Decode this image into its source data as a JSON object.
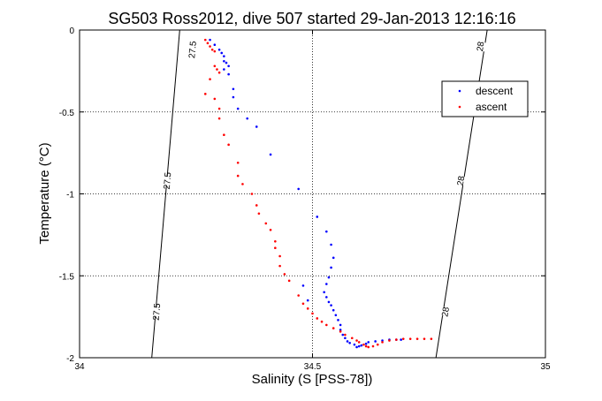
{
  "chart_data": {
    "type": "scatter",
    "title": "SG503 Ross2012, dive 507 started 29-Jan-2013 12:16:16",
    "xlabel": "Salinity (S [PSS-78])",
    "ylabel": "Temperature (°C)",
    "xlim": [
      34,
      35
    ],
    "ylim": [
      -2,
      0
    ],
    "x_ticks": [
      "34",
      "34.5",
      "35"
    ],
    "y_ticks": [
      "0",
      "-0.5",
      "-1",
      "-1.5",
      "-2"
    ],
    "grid": true,
    "legend_position": "top-right",
    "series": [
      {
        "name": "descent",
        "color": "#0000ff",
        "marker": "dot",
        "points": [
          [
            34.28,
            -0.06
          ],
          [
            34.29,
            -0.09
          ],
          [
            34.3,
            -0.12
          ],
          [
            34.305,
            -0.14
          ],
          [
            34.31,
            -0.16
          ],
          [
            34.31,
            -0.19
          ],
          [
            34.315,
            -0.2
          ],
          [
            34.32,
            -0.22
          ],
          [
            34.31,
            -0.24
          ],
          [
            34.32,
            -0.27
          ],
          [
            34.33,
            -0.36
          ],
          [
            34.33,
            -0.41
          ],
          [
            34.34,
            -0.48
          ],
          [
            34.36,
            -0.54
          ],
          [
            34.38,
            -0.59
          ],
          [
            34.41,
            -0.76
          ],
          [
            34.47,
            -0.97
          ],
          [
            34.51,
            -1.14
          ],
          [
            34.53,
            -1.23
          ],
          [
            34.54,
            -1.31
          ],
          [
            34.545,
            -1.39
          ],
          [
            34.54,
            -1.45
          ],
          [
            34.535,
            -1.51
          ],
          [
            34.53,
            -1.55
          ],
          [
            34.525,
            -1.6
          ],
          [
            34.53,
            -1.63
          ],
          [
            34.535,
            -1.66
          ],
          [
            34.54,
            -1.68
          ],
          [
            34.545,
            -1.71
          ],
          [
            34.55,
            -1.74
          ],
          [
            34.555,
            -1.77
          ],
          [
            34.56,
            -1.8
          ],
          [
            34.56,
            -1.83
          ],
          [
            34.565,
            -1.86
          ],
          [
            34.57,
            -1.88
          ],
          [
            34.575,
            -1.9
          ],
          [
            34.58,
            -1.91
          ],
          [
            34.59,
            -1.92
          ],
          [
            34.595,
            -1.935
          ],
          [
            34.6,
            -1.93
          ],
          [
            34.605,
            -1.925
          ],
          [
            34.615,
            -1.915
          ],
          [
            34.62,
            -1.905
          ],
          [
            34.635,
            -1.9
          ],
          [
            34.65,
            -1.895
          ],
          [
            34.665,
            -1.89
          ],
          [
            34.68,
            -1.89
          ],
          [
            34.69,
            -1.89
          ],
          [
            34.48,
            -1.56
          ],
          [
            34.49,
            -1.65
          ]
        ]
      },
      {
        "name": "ascent",
        "color": "#ff0000",
        "marker": "dot",
        "points": [
          [
            34.27,
            -0.06
          ],
          [
            34.275,
            -0.08
          ],
          [
            34.28,
            -0.1
          ],
          [
            34.285,
            -0.12
          ],
          [
            34.29,
            -0.13
          ],
          [
            34.29,
            -0.22
          ],
          [
            34.295,
            -0.24
          ],
          [
            34.3,
            -0.26
          ],
          [
            34.28,
            -0.3
          ],
          [
            34.27,
            -0.39
          ],
          [
            34.29,
            -0.42
          ],
          [
            34.3,
            -0.48
          ],
          [
            34.3,
            -0.54
          ],
          [
            34.31,
            -0.64
          ],
          [
            34.32,
            -0.7
          ],
          [
            34.34,
            -0.81
          ],
          [
            34.34,
            -0.89
          ],
          [
            34.35,
            -0.94
          ],
          [
            34.37,
            -1.0
          ],
          [
            34.38,
            -1.07
          ],
          [
            34.385,
            -1.12
          ],
          [
            34.4,
            -1.18
          ],
          [
            34.41,
            -1.22
          ],
          [
            34.42,
            -1.29
          ],
          [
            34.42,
            -1.33
          ],
          [
            34.43,
            -1.38
          ],
          [
            34.43,
            -1.44
          ],
          [
            34.44,
            -1.49
          ],
          [
            34.45,
            -1.53
          ],
          [
            34.47,
            -1.62
          ],
          [
            34.48,
            -1.67
          ],
          [
            34.49,
            -1.7
          ],
          [
            34.5,
            -1.73
          ],
          [
            34.51,
            -1.76
          ],
          [
            34.52,
            -1.78
          ],
          [
            34.53,
            -1.8
          ],
          [
            34.545,
            -1.82
          ],
          [
            34.56,
            -1.84
          ],
          [
            34.57,
            -1.86
          ],
          [
            34.585,
            -1.88
          ],
          [
            34.595,
            -1.895
          ],
          [
            34.6,
            -1.905
          ],
          [
            34.61,
            -1.92
          ],
          [
            34.615,
            -1.93
          ],
          [
            34.62,
            -1.935
          ],
          [
            34.63,
            -1.93
          ],
          [
            34.64,
            -1.92
          ],
          [
            34.65,
            -1.905
          ],
          [
            34.665,
            -1.895
          ],
          [
            34.68,
            -1.89
          ],
          [
            34.695,
            -1.885
          ],
          [
            34.71,
            -1.885
          ],
          [
            34.725,
            -1.885
          ],
          [
            34.74,
            -1.885
          ],
          [
            34.755,
            -1.885
          ]
        ]
      }
    ],
    "isopycnals": [
      {
        "line": [
          [
            34.215,
            0
          ],
          [
            34.155,
            -2
          ]
        ],
        "labels": [
          {
            "text": "27.5",
            "x": 34.242,
            "y": -0.12
          },
          {
            "text": "27.5",
            "x": 34.188,
            "y": -0.92
          },
          {
            "text": "27.5",
            "x": 34.165,
            "y": -1.72
          }
        ]
      },
      {
        "line": [
          [
            34.875,
            0
          ],
          [
            34.765,
            -2
          ]
        ],
        "labels": [
          {
            "text": "28",
            "x": 34.86,
            "y": -0.1
          },
          {
            "text": "28",
            "x": 34.818,
            "y": -0.92
          },
          {
            "text": "28",
            "x": 34.785,
            "y": -1.72
          }
        ]
      }
    ]
  }
}
